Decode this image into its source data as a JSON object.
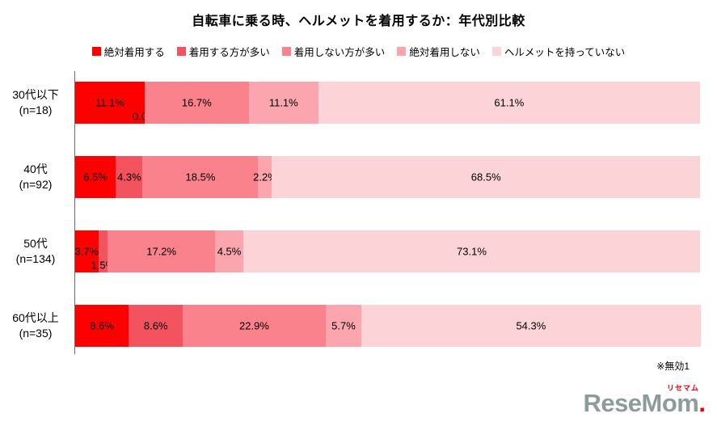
{
  "title": "自転車に乗る時、ヘルメットを着用するか：年代別比較",
  "note": "※無効1",
  "logo": {
    "kana": "リセマム",
    "text": "ReseMom",
    "dot": "."
  },
  "chart_data": {
    "type": "bar",
    "stacked": true,
    "orientation": "horizontal",
    "unit": "%",
    "title": "自転車に乗る時、ヘルメットを着用するか：年代別比較",
    "legend_position": "top",
    "xlim": [
      0,
      100
    ],
    "categories": [
      {
        "label": "30代以下",
        "n_label": "(n=18)"
      },
      {
        "label": "40代",
        "n_label": "(n=92)"
      },
      {
        "label": "50代",
        "n_label": "(n=134)"
      },
      {
        "label": "60代以上",
        "n_label": "(n=35)"
      }
    ],
    "series": [
      {
        "name": "絶対着用する",
        "color": "#FF0000",
        "values": [
          11.1,
          6.5,
          3.7,
          8.6
        ]
      },
      {
        "name": "着用する方が多い",
        "color": "#F2535F",
        "values": [
          0.0,
          4.3,
          1.5,
          8.6
        ]
      },
      {
        "name": "着用しない方が多い",
        "color": "#F9828C",
        "values": [
          16.7,
          18.5,
          17.2,
          22.9
        ]
      },
      {
        "name": "絶対着用しない",
        "color": "#FBA6AE",
        "values": [
          11.1,
          2.2,
          4.5,
          5.7
        ]
      },
      {
        "name": "ヘルメットを持っていない",
        "color": "#FCD3D6",
        "values": [
          61.1,
          68.5,
          73.1,
          54.3
        ]
      }
    ],
    "value_labels": true,
    "low_labels": [
      [
        0,
        1
      ],
      [
        2,
        1
      ]
    ]
  }
}
